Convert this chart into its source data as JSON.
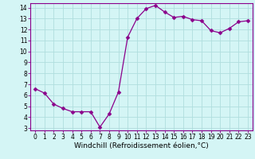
{
  "x": [
    0,
    1,
    2,
    3,
    4,
    5,
    6,
    7,
    8,
    9,
    10,
    11,
    12,
    13,
    14,
    15,
    16,
    17,
    18,
    19,
    20,
    21,
    22,
    23
  ],
  "y": [
    6.6,
    6.2,
    5.2,
    4.8,
    4.5,
    4.5,
    4.5,
    3.1,
    4.3,
    6.3,
    11.3,
    13.0,
    13.9,
    14.2,
    13.6,
    13.1,
    13.2,
    12.9,
    12.8,
    11.9,
    11.7,
    12.1,
    12.7,
    12.8
  ],
  "line_color": "#8B008B",
  "marker": "D",
  "marker_size": 2.5,
  "bg_color": "#d4f5f5",
  "grid_color": "#b0dede",
  "xlabel": "Windchill (Refroidissement éolien,°C)",
  "xlabel_fontsize": 6.5,
  "ylim_min": 2.8,
  "ylim_max": 14.4,
  "xlim_min": -0.5,
  "xlim_max": 23.5,
  "yticks": [
    3,
    4,
    5,
    6,
    7,
    8,
    9,
    10,
    11,
    12,
    13,
    14
  ],
  "xticks": [
    0,
    1,
    2,
    3,
    4,
    5,
    6,
    7,
    8,
    9,
    10,
    11,
    12,
    13,
    14,
    15,
    16,
    17,
    18,
    19,
    20,
    21,
    22,
    23
  ],
  "tick_fontsize": 5.5,
  "spine_color": "#8B008B",
  "line_width": 0.9
}
